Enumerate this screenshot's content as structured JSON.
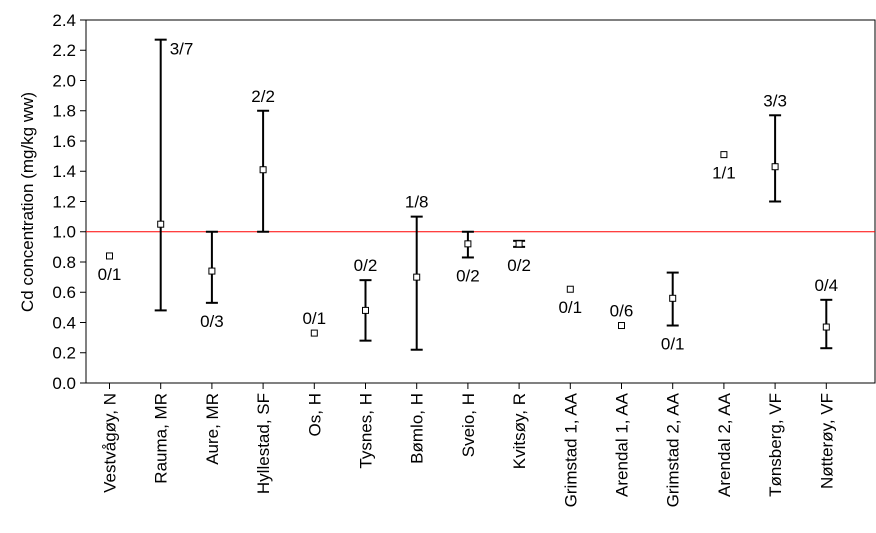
{
  "chart_data": {
    "type": "scatter",
    "ylabel": "Cd concentration (mg/kg ww)",
    "xlabel": "",
    "ylim": [
      0.0,
      2.4
    ],
    "yticks": [
      "0.0",
      "0.2",
      "0.4",
      "0.6",
      "0.8",
      "1.0",
      "1.2",
      "1.4",
      "1.6",
      "1.8",
      "2.0",
      "2.2",
      "2.4"
    ],
    "grid": false,
    "categories": [
      "Vestvågøy, N",
      "Rauma, MR",
      "Aure, MR",
      "Hyllestad, SF",
      "Os, H",
      "Tysnes, H",
      "Bømlo, H",
      "Sveio, H",
      "Kvitsøy, R",
      "Grimstad 1, AA",
      "Arendal 1, AA",
      "Grimstad 2, AA",
      "Arendal 2, AA",
      "Tønsberg, VF",
      "Nøtterøy, VF"
    ],
    "series": [
      {
        "values": [
          0.84,
          1.05,
          0.74,
          1.41,
          0.33,
          0.48,
          0.7,
          0.92,
          0.92,
          0.62,
          0.38,
          0.56,
          1.51,
          1.43,
          0.37
        ],
        "lower": [
          null,
          0.48,
          0.53,
          1.0,
          null,
          0.28,
          0.22,
          0.83,
          0.9,
          null,
          null,
          0.38,
          null,
          1.2,
          0.23
        ],
        "upper": [
          null,
          2.27,
          1.0,
          1.8,
          null,
          0.68,
          1.1,
          1.0,
          0.94,
          null,
          null,
          0.73,
          null,
          1.77,
          0.55
        ],
        "labels": [
          "0/1",
          "3/7",
          "0/3",
          "2/2",
          "0/1",
          "0/2",
          "1/8",
          "0/2",
          "0/2",
          "0/1",
          "0/6",
          "0/1",
          "1/1",
          "3/3",
          "0/4"
        ]
      }
    ],
    "reference_line": {
      "y": 1.0,
      "color": "#ff0000"
    },
    "colors": {
      "marker": "#000000",
      "reference": "#ff0000",
      "axis": "#000000"
    }
  }
}
